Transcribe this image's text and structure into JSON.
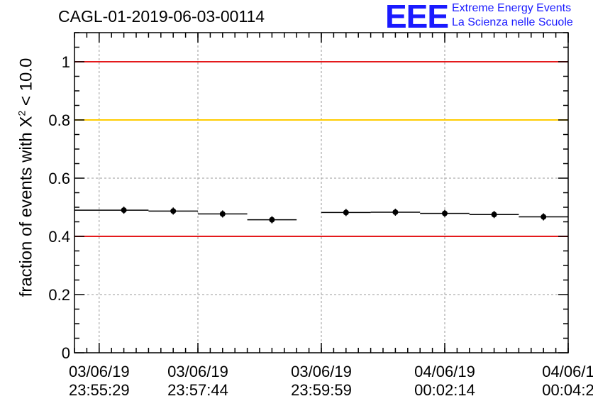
{
  "header": {
    "title": "CAGL-01-2019-06-03-00114",
    "logo_text": "EEE",
    "logo_line1": "Extreme Energy Events",
    "logo_line2": "La Scienza nelle Scuole"
  },
  "colors": {
    "logo": "#1a1aff",
    "red_threshold": "#e41a1c",
    "yellow_threshold": "#ffcc00",
    "grid": "#999999",
    "data": "#000000"
  },
  "chart_data": {
    "type": "scatter",
    "ylabel_prefix": "fraction of events with ",
    "ylabel_symbol": "X",
    "ylabel_exponent": "2",
    "ylabel_suffix": " < 10.0",
    "ylim": [
      0,
      1.1
    ],
    "y_ticks": [
      0,
      0.2,
      0.4,
      0.6,
      0.8,
      1
    ],
    "y_tick_labels": [
      "0",
      "0.2",
      "0.4",
      "0.6",
      "0.8",
      "1"
    ],
    "x_range": [
      "03/06/19 23:54:29",
      "03/06/19 00:04:29 +1d"
    ],
    "x_ticks": [
      {
        "date": "03/06/19",
        "time": "23:55:29"
      },
      {
        "date": "03/06/19",
        "time": "23:57:44"
      },
      {
        "date": "03/06/19",
        "time": "23:59:59"
      },
      {
        "date": "04/06/19",
        "time": "00:02:14"
      },
      {
        "date": "04/06/1",
        "time": "00:04:2"
      }
    ],
    "thresholds": [
      {
        "y": 1.0,
        "color": "red"
      },
      {
        "y": 0.8,
        "color": "yellow"
      },
      {
        "y": 0.4,
        "color": "red"
      }
    ],
    "grid": true,
    "series": [
      {
        "points": [
          {
            "x": "23:55:29",
            "y": 0.49
          },
          {
            "x": "23:56:29",
            "y": 0.487
          },
          {
            "x": "23:57:29",
            "y": 0.477
          },
          {
            "x": "23:58:29",
            "y": 0.457
          },
          {
            "x": "23:59:59",
            "y": 0.482
          },
          {
            "x": "00:00:59",
            "y": 0.483
          },
          {
            "x": "00:01:59",
            "y": 0.479
          },
          {
            "x": "00:02:59",
            "y": 0.475
          },
          {
            "x": "00:03:59",
            "y": 0.467
          }
        ]
      }
    ]
  }
}
